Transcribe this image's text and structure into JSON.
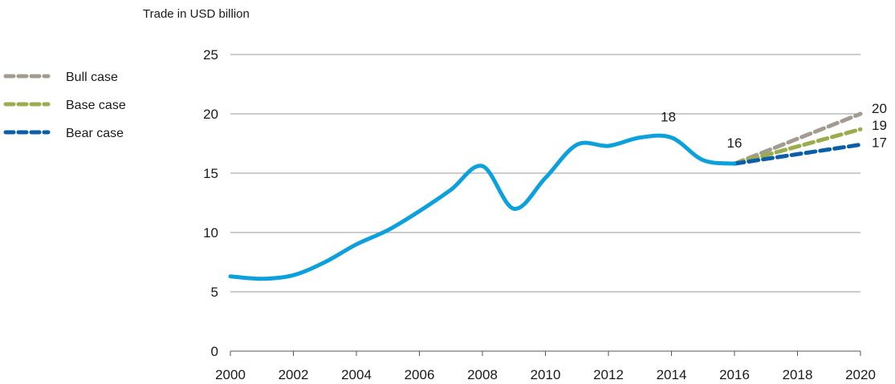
{
  "chart_data": {
    "type": "line",
    "ylabel": "Trade in USD billion",
    "xlabel": "",
    "xlim": [
      2000,
      2020
    ],
    "ylim": [
      0,
      25
    ],
    "x_ticks": [
      "2000",
      "2002",
      "2004",
      "2006",
      "2008",
      "2010",
      "2012",
      "2014",
      "2016",
      "2018",
      "2020"
    ],
    "y_ticks": [
      "0",
      "5",
      "10",
      "15",
      "20",
      "25"
    ],
    "grid": true,
    "legend_position": "left",
    "series": [
      {
        "key": "historical",
        "color": "#0ca0dc",
        "style": "solid",
        "x": [
          2000,
          2001,
          2002,
          2003,
          2004,
          2005,
          2006,
          2007,
          2008,
          2009,
          2010,
          2011,
          2012,
          2013,
          2014,
          2015,
          2016
        ],
        "values": [
          6.3,
          6.1,
          6.4,
          7.5,
          9.0,
          10.2,
          11.8,
          13.6,
          15.6,
          12.0,
          14.6,
          17.4,
          17.3,
          18.0,
          18.0,
          16.1,
          15.8
        ]
      },
      {
        "name": "Bull case",
        "color": "#a39b8f",
        "style": "dashed",
        "x": [
          2016,
          2020
        ],
        "values": [
          15.8,
          20.0
        ]
      },
      {
        "name": "Base case",
        "color": "#9aac4c",
        "style": "dashed",
        "x": [
          2016,
          2020
        ],
        "values": [
          15.8,
          18.7
        ]
      },
      {
        "name": "Bear case",
        "color": "#0b5ea8",
        "style": "dashed",
        "x": [
          2016,
          2020
        ],
        "values": [
          15.8,
          17.4
        ]
      }
    ],
    "annotations": [
      {
        "text": "18",
        "x": 2013.9,
        "y": 18.0
      },
      {
        "text": "16",
        "x": 2016,
        "y": 15.8
      },
      {
        "text": "20",
        "x": 2020,
        "y": 20.0
      },
      {
        "text": "19",
        "x": 2020,
        "y": 18.7
      },
      {
        "text": "17",
        "x": 2020,
        "y": 17.4
      }
    ]
  }
}
